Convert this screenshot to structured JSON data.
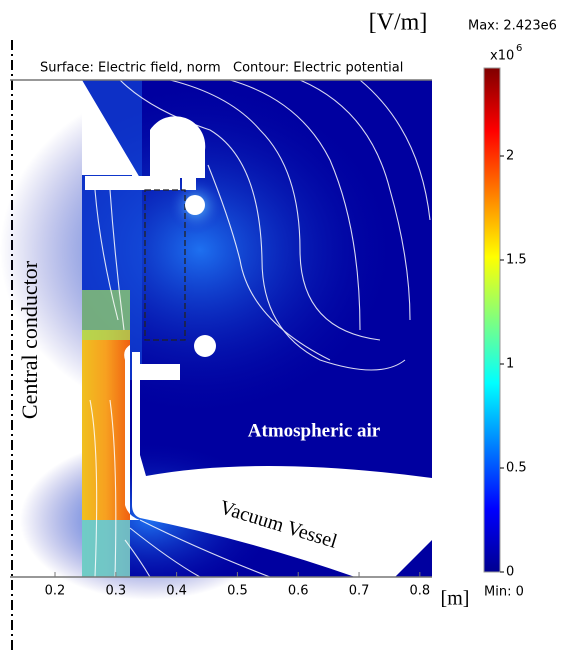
{
  "chart_data": {
    "type": "contour",
    "unit_label": "[V/m]",
    "subtitle": "Surface: Electric field, norm   Contour: Electric potential",
    "annotations": [
      "Central conductor",
      "Atmospheric air",
      "Vacuum Vessel"
    ],
    "xlabel": "[m]",
    "xlim": [
      0.126,
      0.82
    ],
    "xticks": [
      0.2,
      0.3,
      0.4,
      0.5,
      0.6,
      0.7,
      0.8
    ],
    "colorbar": {
      "max_label": "Max: 2.423e6",
      "min_label": "Min: 0",
      "multiplier": "x10",
      "exponent": "6",
      "clim": [
        0,
        2.423
      ],
      "ticks": [
        0,
        0.5,
        1,
        1.5,
        2
      ]
    }
  }
}
